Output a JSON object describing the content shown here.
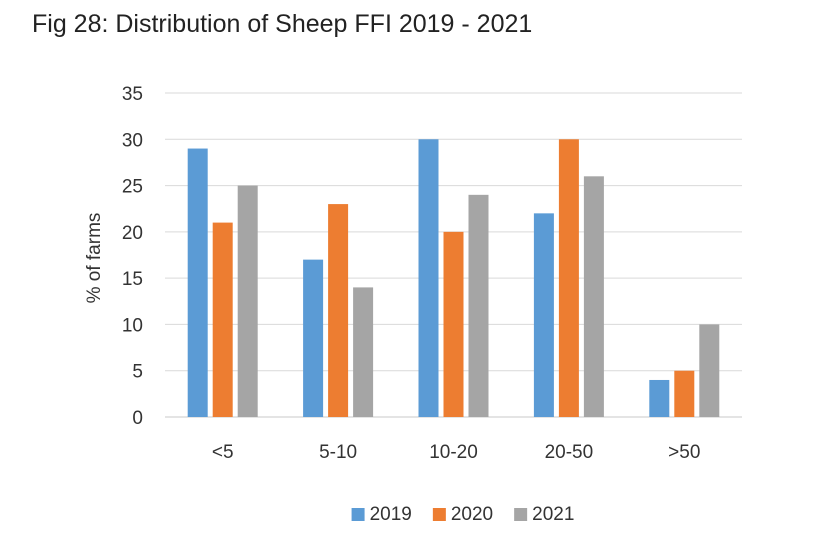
{
  "chart_data": {
    "type": "bar",
    "title": "Fig 28: Distribution of Sheep FFI 2019 - 2021",
    "xlabel": "",
    "ylabel": "% of farms",
    "ylim": [
      0,
      35
    ],
    "yticks": [
      0,
      5,
      10,
      15,
      20,
      25,
      30,
      35
    ],
    "categories": [
      "<5",
      "5-10",
      "10-20",
      "20-50",
      ">50"
    ],
    "series": [
      {
        "name": "2019",
        "color": "#5b9bd5",
        "values": [
          29,
          17,
          30,
          22,
          4
        ]
      },
      {
        "name": "2020",
        "color": "#ed7d31",
        "values": [
          21,
          23,
          20,
          30,
          5
        ]
      },
      {
        "name": "2021",
        "color": "#a5a5a5",
        "values": [
          25,
          14,
          24,
          26,
          10
        ]
      }
    ],
    "grid": true,
    "legend": "bottom"
  }
}
